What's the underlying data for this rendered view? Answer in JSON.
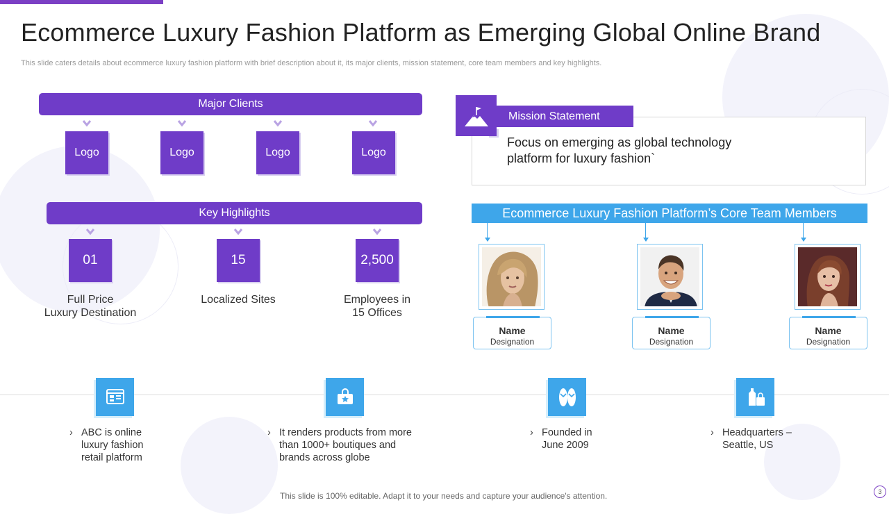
{
  "header": {
    "title": "Ecommerce Luxury Fashion Platform as Emerging Global Online Brand",
    "subtitle": "This slide caters details about ecommerce luxury fashion platform with brief description about it, its major clients, mission statement, core team members and key highlights."
  },
  "major_clients": {
    "label": "Major Clients",
    "logos": [
      "Logo",
      "Logo",
      "Logo",
      "Logo"
    ]
  },
  "key_highlights": {
    "label": "Key Highlights",
    "items": [
      {
        "value": "01",
        "label_line1": "Full Price",
        "label_line2": "Luxury  Destination"
      },
      {
        "value": "15",
        "label_line1": "Localized Sites",
        "label_line2": ""
      },
      {
        "value": "2,500",
        "label_line1": "Employees in",
        "label_line2": "15 Offices"
      }
    ]
  },
  "mission": {
    "label": "Mission Statement",
    "text_line1": "Focus on emerging as global technology",
    "text_line2": "platform for luxury  fashion`",
    "icon": "mountain-flag-icon"
  },
  "team": {
    "label": "Ecommerce Luxury Fashion Platform’s Core Team Members",
    "members": [
      {
        "name": "Name",
        "designation": "Designation"
      },
      {
        "name": "Name",
        "designation": "Designation"
      },
      {
        "name": "Name",
        "designation": "Designation"
      }
    ]
  },
  "features": [
    {
      "icon": "online-shop-icon",
      "lines": [
        "ABC is online",
        "luxury fashion",
        "retail platform"
      ]
    },
    {
      "icon": "shopping-bag-icon",
      "lines": [
        "It renders products from more",
        "than 1000+ boutiques and",
        "brands across globe"
      ]
    },
    {
      "icon": "sandals-icon",
      "lines": [
        "Founded in",
        "June 2009"
      ]
    },
    {
      "icon": "dress-bag-icon",
      "lines": [
        "Headquarters –",
        "Seattle, US"
      ]
    }
  ],
  "bullet_glyph": "›",
  "footer": "This slide is 100% editable. Adapt it to your needs and capture your audience's attention.",
  "page_number": "3",
  "colors": {
    "purple": "#6f3cc8",
    "blue": "#3ea6ea"
  }
}
